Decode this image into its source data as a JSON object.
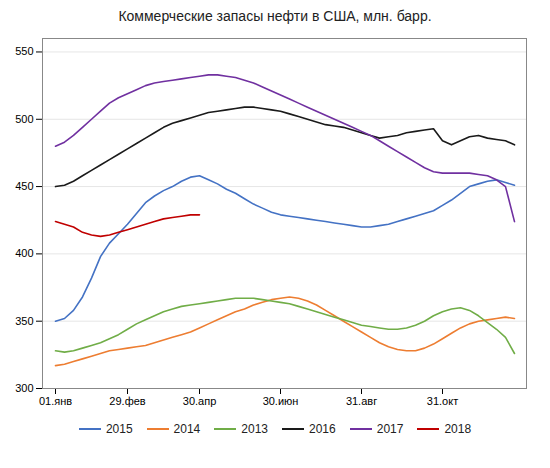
{
  "chart_data": {
    "type": "line",
    "title": "Коммерческие запасы нефти в США, млн. барр.",
    "categories": [
      "01.янв",
      null,
      null,
      null,
      null,
      null,
      null,
      null,
      "29.фев",
      null,
      null,
      null,
      null,
      null,
      null,
      null,
      "30.апр",
      null,
      null,
      null,
      null,
      null,
      null,
      null,
      null,
      "30.июн",
      null,
      null,
      null,
      null,
      null,
      null,
      null,
      null,
      "31.авг",
      null,
      null,
      null,
      null,
      null,
      null,
      null,
      null,
      "31.окт",
      null,
      null,
      null,
      null,
      null,
      null,
      null,
      null
    ],
    "ylim": [
      300,
      560
    ],
    "yticks": [
      300,
      350,
      400,
      450,
      500,
      550
    ],
    "grid": true,
    "legend": "bottom",
    "series": [
      {
        "name": "2015",
        "color": "#4472C4",
        "values": [
          350,
          352,
          358,
          368,
          382,
          398,
          408,
          415,
          422,
          430,
          438,
          443,
          447,
          450,
          454,
          457,
          458,
          455,
          452,
          448,
          445,
          441,
          437,
          434,
          431,
          429,
          428,
          427,
          426,
          425,
          424,
          423,
          422,
          421,
          420,
          420,
          421,
          422,
          424,
          426,
          428,
          430,
          432,
          436,
          440,
          445,
          450,
          452,
          454,
          455,
          453,
          451
        ]
      },
      {
        "name": "2014",
        "color": "#ED7D31",
        "values": [
          317,
          318,
          320,
          322,
          324,
          326,
          328,
          329,
          330,
          331,
          332,
          334,
          336,
          338,
          340,
          342,
          345,
          348,
          351,
          354,
          357,
          359,
          362,
          364,
          366,
          367,
          368,
          367,
          365,
          362,
          358,
          354,
          350,
          346,
          342,
          338,
          334,
          331,
          329,
          328,
          328,
          330,
          333,
          337,
          341,
          345,
          348,
          350,
          351,
          352,
          353,
          352
        ]
      },
      {
        "name": "2013",
        "color": "#70AD47",
        "values": [
          328,
          327,
          328,
          330,
          332,
          334,
          337,
          340,
          344,
          348,
          351,
          354,
          357,
          359,
          361,
          362,
          363,
          364,
          365,
          366,
          367,
          367,
          367,
          366,
          365,
          364,
          363,
          361,
          359,
          357,
          355,
          353,
          351,
          349,
          347,
          346,
          345,
          344,
          344,
          345,
          347,
          350,
          354,
          357,
          359,
          360,
          358,
          354,
          349,
          344,
          338,
          326
        ]
      },
      {
        "name": "2016",
        "color": "#1A1A1A",
        "values": [
          450,
          451,
          454,
          458,
          462,
          466,
          470,
          474,
          478,
          482,
          486,
          490,
          494,
          497,
          499,
          501,
          503,
          505,
          506,
          507,
          508,
          509,
          509,
          508,
          507,
          506,
          504,
          502,
          500,
          498,
          496,
          495,
          494,
          492,
          490,
          488,
          486,
          487,
          488,
          490,
          491,
          492,
          493,
          484,
          481,
          484,
          487,
          488,
          486,
          485,
          484,
          481
        ]
      },
      {
        "name": "2017",
        "color": "#7030A0",
        "values": [
          480,
          483,
          488,
          494,
          500,
          506,
          512,
          516,
          519,
          522,
          525,
          527,
          528,
          529,
          530,
          531,
          532,
          533,
          533,
          532,
          531,
          529,
          527,
          524,
          521,
          518,
          515,
          512,
          509,
          506,
          503,
          500,
          497,
          494,
          491,
          488,
          484,
          480,
          476,
          472,
          468,
          464,
          461,
          460,
          460,
          460,
          460,
          459,
          458,
          455,
          450,
          424
        ]
      },
      {
        "name": "2018",
        "color": "#C00000",
        "values": [
          424,
          422,
          420,
          416,
          414,
          413,
          414,
          416,
          418,
          420,
          422,
          424,
          426,
          427,
          428,
          429,
          429,
          null,
          null,
          null,
          null,
          null,
          null,
          null,
          null,
          null,
          null,
          null,
          null,
          null,
          null,
          null,
          null,
          null,
          null,
          null,
          null,
          null,
          null,
          null,
          null,
          null,
          null,
          null,
          null,
          null,
          null,
          null,
          null,
          null,
          null,
          null
        ]
      }
    ]
  }
}
